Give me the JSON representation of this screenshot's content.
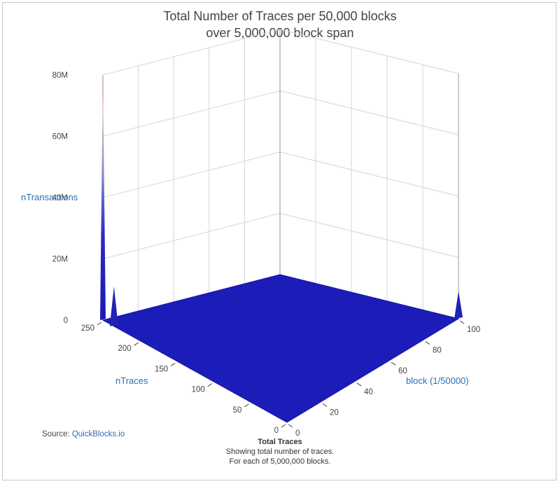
{
  "title_line1": "Total Number of Traces per 50,000 blocks",
  "title_line2": "over 5,000,000 block span",
  "source_label": "Source:",
  "source_link": "QuickBlocks.io",
  "caption": {
    "title": "Total Traces",
    "line1": "Showing total number of traces.",
    "line2": "For each of 5,000,000 blocks."
  },
  "chart_data": {
    "type": "surface",
    "x_axis": {
      "label": "block (1/50000)",
      "ticks": [
        "0",
        "20",
        "40",
        "60",
        "80",
        "100"
      ],
      "range": [
        0,
        100
      ]
    },
    "y_axis": {
      "label": "nTraces",
      "ticks": [
        "0",
        "50",
        "100",
        "150",
        "200",
        "250"
      ],
      "range": [
        0,
        250
      ]
    },
    "z_axis": {
      "label": "nTransactions",
      "ticks": [
        "0",
        "20M",
        "40M",
        "60M",
        "80M"
      ],
      "range": [
        0,
        80000000
      ]
    },
    "grid": true,
    "colorscale": [
      "#1a1ab4",
      "#6a6ad0",
      "#c8b0b0",
      "#b22222"
    ],
    "peaks": [
      {
        "block": 0,
        "nTraces": 250,
        "nTransactions": 80000000
      },
      {
        "block": 0,
        "nTraces": 235,
        "nTransactions": 13000000
      },
      {
        "block": 100,
        "nTraces": 0,
        "nTransactions": 9000000
      }
    ]
  }
}
